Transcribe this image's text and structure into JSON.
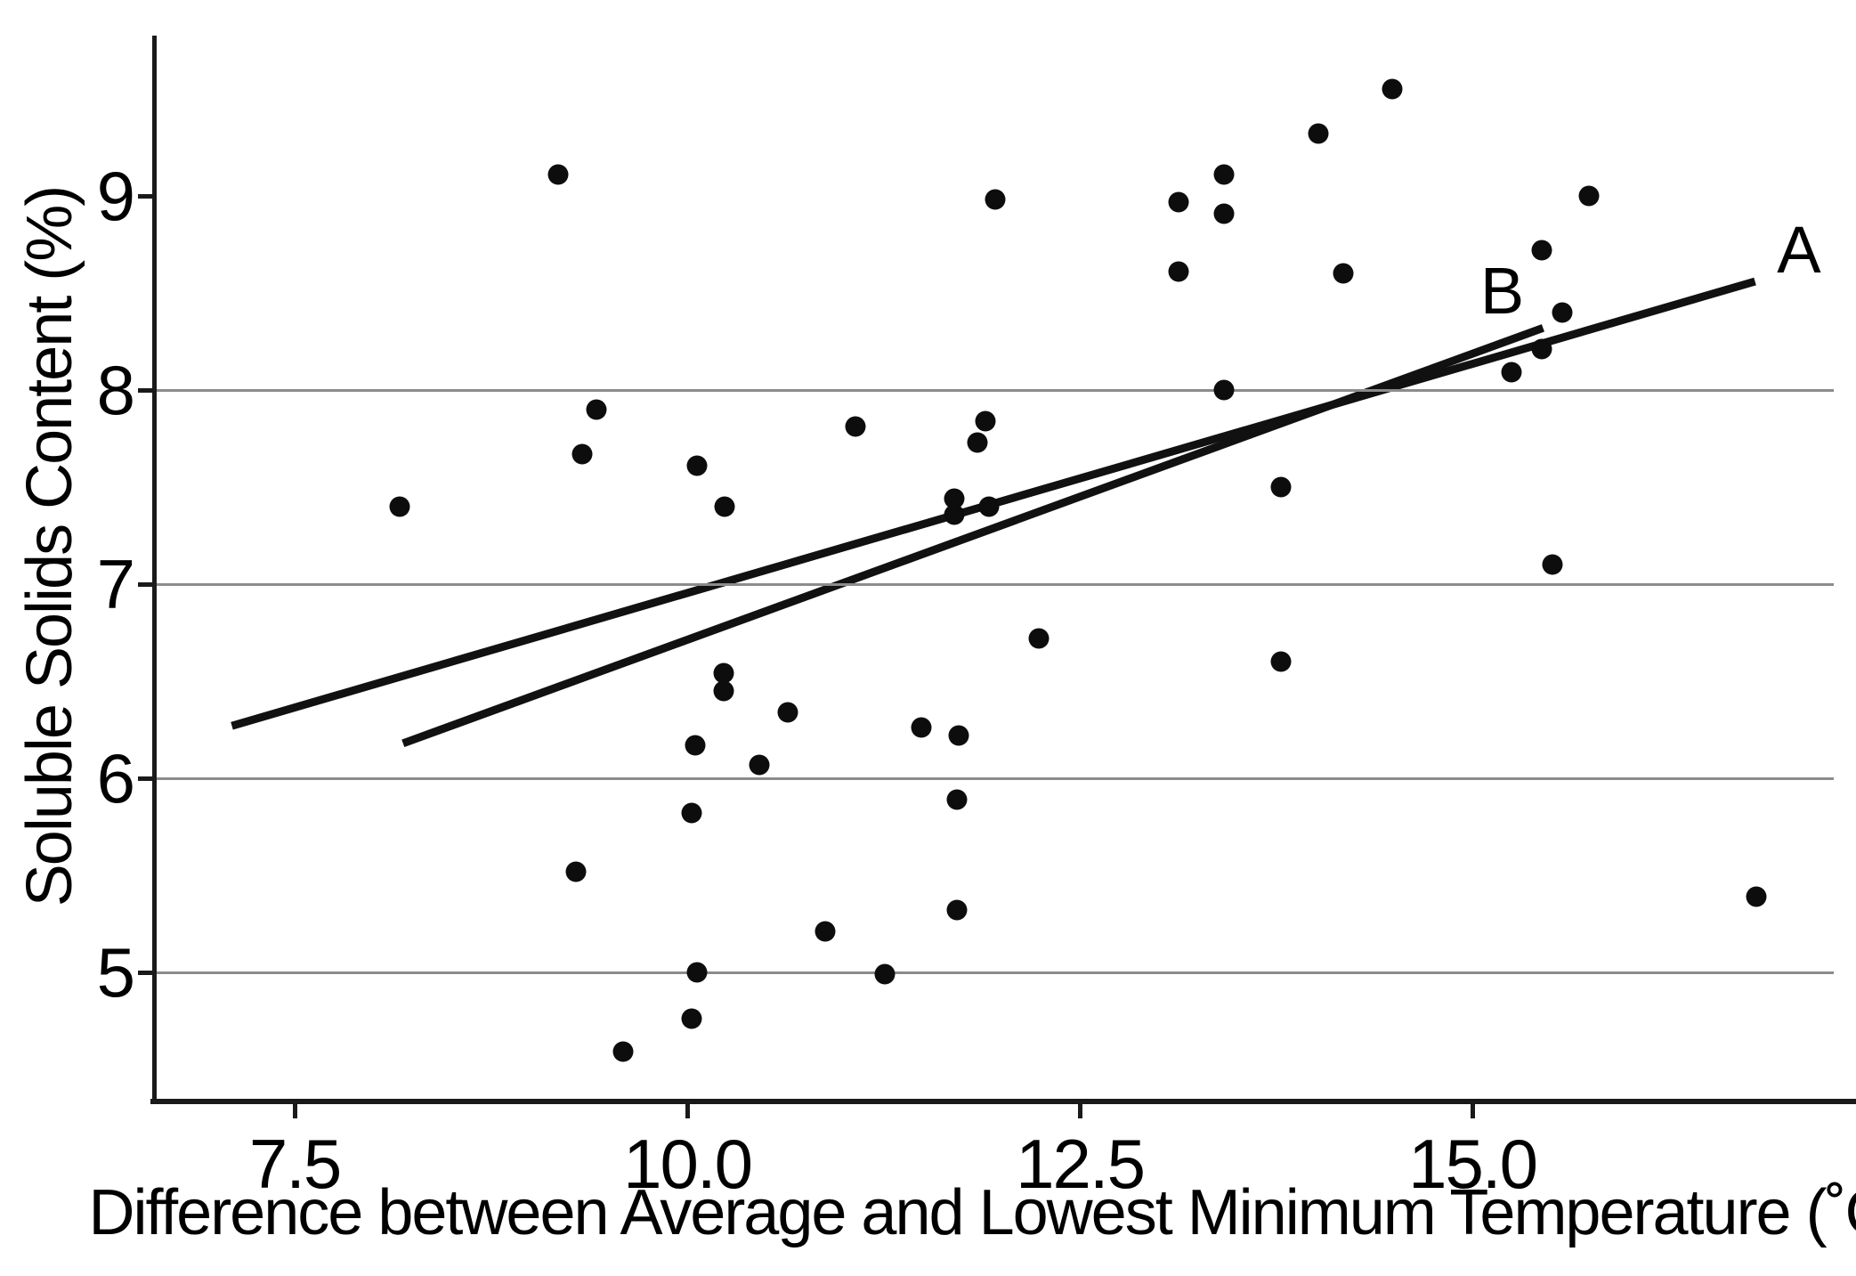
{
  "chart_data": {
    "type": "scatter",
    "title": "",
    "xlabel": "Difference between Average and Lowest Minimum Temperature (˚C)",
    "ylabel": "Soluble Solids Content (%)",
    "xlim": [
      6.604,
      17.443
    ],
    "ylim": [
      4.335,
      9.817
    ],
    "x_ticks": [
      7.5,
      10.0,
      12.5,
      15.0
    ],
    "x_tick_labels": [
      "7.5",
      "10.0",
      "12.5",
      "15.0"
    ],
    "y_ticks": [
      5,
      6,
      7,
      8,
      9
    ],
    "y_tick_labels": [
      "5",
      "6",
      "7",
      "8",
      "9"
    ],
    "gridlines_y": [
      5,
      6,
      7,
      8
    ],
    "grid_on": true,
    "legend_position": "none",
    "marker_color": "#0d0d0d",
    "line_color": "#111111",
    "grid_color": "#8c8c8c",
    "points": [
      [
        9.18,
        9.11
      ],
      [
        11.96,
        8.98
      ],
      [
        13.13,
        8.97
      ],
      [
        13.42,
        9.11
      ],
      [
        13.42,
        8.91
      ],
      [
        13.13,
        8.61
      ],
      [
        14.02,
        9.32
      ],
      [
        14.49,
        9.55
      ],
      [
        14.18,
        8.6
      ],
      [
        15.74,
        9.0
      ],
      [
        15.44,
        8.72
      ],
      [
        15.57,
        8.4
      ],
      [
        15.44,
        8.21
      ],
      [
        15.25,
        8.09
      ],
      [
        13.42,
        8.0
      ],
      [
        15.51,
        7.1
      ],
      [
        13.78,
        7.5
      ],
      [
        13.78,
        6.6
      ],
      [
        16.81,
        5.39
      ],
      [
        8.17,
        7.4
      ],
      [
        9.42,
        7.9
      ],
      [
        9.33,
        7.67
      ],
      [
        10.06,
        7.61
      ],
      [
        10.24,
        7.4
      ],
      [
        11.07,
        7.81
      ],
      [
        11.9,
        7.84
      ],
      [
        11.85,
        7.73
      ],
      [
        11.7,
        7.44
      ],
      [
        11.7,
        7.36
      ],
      [
        11.92,
        7.4
      ],
      [
        10.23,
        6.54
      ],
      [
        10.23,
        6.45
      ],
      [
        10.05,
        6.17
      ],
      [
        10.46,
        6.07
      ],
      [
        10.03,
        5.82
      ],
      [
        9.29,
        5.52
      ],
      [
        10.06,
        5.0
      ],
      [
        10.03,
        4.76
      ],
      [
        9.59,
        4.59
      ],
      [
        10.64,
        6.34
      ],
      [
        11.49,
        6.26
      ],
      [
        11.73,
        6.22
      ],
      [
        11.72,
        5.89
      ],
      [
        11.72,
        5.32
      ],
      [
        10.88,
        5.21
      ],
      [
        11.26,
        4.99
      ],
      [
        12.24,
        6.72
      ]
    ],
    "regression_lines": [
      {
        "label": "A",
        "x1": 7.1,
        "y1": 6.27,
        "x2": 16.8,
        "y2": 8.56,
        "label_x": 17.08,
        "label_y": 8.72
      },
      {
        "label": "B",
        "x1": 8.19,
        "y1": 6.18,
        "x2": 15.45,
        "y2": 8.32,
        "label_x": 15.19,
        "label_y": 8.51
      }
    ]
  }
}
